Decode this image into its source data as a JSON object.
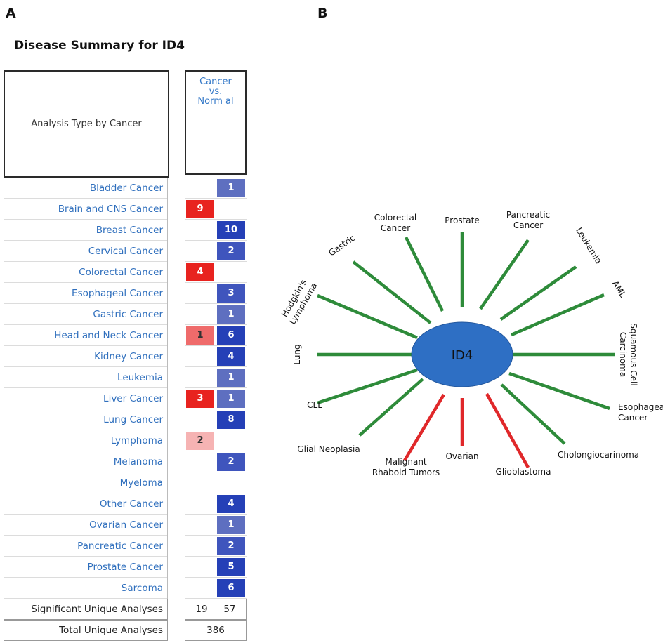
{
  "panels": {
    "a": "A",
    "b": "B"
  },
  "table": {
    "title": "Disease Summary for ID4",
    "type_header": "Analysis Type by Cancer",
    "value_header": [
      "Cancer",
      "vs.",
      "Norm al"
    ],
    "rows": [
      {
        "label": "Bladder Cancer",
        "up": "",
        "down": "1"
      },
      {
        "label": "Brain and CNS Cancer",
        "up": "9",
        "down": ""
      },
      {
        "label": "Breast Cancer",
        "up": "",
        "down": "10"
      },
      {
        "label": "Cervical Cancer",
        "up": "",
        "down": "2"
      },
      {
        "label": "Colorectal Cancer",
        "up": "4",
        "down": ""
      },
      {
        "label": "Esophageal Cancer",
        "up": "",
        "down": "3"
      },
      {
        "label": "Gastric Cancer",
        "up": "",
        "down": "1"
      },
      {
        "label": "Head and Neck Cancer",
        "up": "1",
        "down": "6"
      },
      {
        "label": "Kidney Cancer",
        "up": "",
        "down": "4"
      },
      {
        "label": "Leukemia",
        "up": "",
        "down": "1"
      },
      {
        "label": "Liver Cancer",
        "up": "3",
        "down": "1"
      },
      {
        "label": "Lung Cancer",
        "up": "",
        "down": "8"
      },
      {
        "label": "Lymphoma",
        "up": "2",
        "down": ""
      },
      {
        "label": "Melanoma",
        "up": "",
        "down": "2"
      },
      {
        "label": "Myeloma",
        "up": "",
        "down": ""
      },
      {
        "label": "Other Cancer",
        "up": "",
        "down": "4"
      },
      {
        "label": "Ovarian Cancer",
        "up": "",
        "down": "1"
      },
      {
        "label": "Pancreatic Cancer",
        "up": "",
        "down": "2"
      },
      {
        "label": "Prostate Cancer",
        "up": "",
        "down": "5"
      },
      {
        "label": "Sarcoma",
        "up": "",
        "down": "6"
      }
    ],
    "significant_label": "Significant Unique Analyses",
    "significant_up": "19",
    "significant_down": "57",
    "total_label": "Total Unique Analyses",
    "total_value": "386",
    "colors": {
      "up_strong": "#e8231f",
      "up_medium": "#ef6b6b",
      "up_light": "#f6b3b3",
      "down_strong": "#2540b7",
      "down_medium": "#3f55bd",
      "down_light": "#5e6fc0"
    }
  },
  "diagram": {
    "center_label": "ID4",
    "center_color": "#2e6fc4",
    "down_color": "#2e8b3a",
    "up_color": "#e0282a",
    "spokes": [
      {
        "label": "Prostate",
        "status": "down"
      },
      {
        "label": "Pancreatic Cancer",
        "status": "down"
      },
      {
        "label": "Leukemia",
        "status": "down"
      },
      {
        "label": "AML",
        "status": "down"
      },
      {
        "label": "Squamous Cell Carcinoma",
        "status": "down"
      },
      {
        "label": "Esophageal Cancer",
        "status": "down"
      },
      {
        "label": "Cholongiocarinoma",
        "status": "down"
      },
      {
        "label": "Glioblastoma",
        "status": "up"
      },
      {
        "label": "Ovarian",
        "status": "up"
      },
      {
        "label": "Malignant Rhaboid Tumors",
        "status": "up"
      },
      {
        "label": "Glial Neoplasia",
        "status": "down"
      },
      {
        "label": "CLL",
        "status": "down"
      },
      {
        "label": "Lung",
        "status": "down"
      },
      {
        "label": "Hodgkin's Lymphoma",
        "status": "down"
      },
      {
        "label": "Gastric",
        "status": "down"
      },
      {
        "label": "Colorectal Cancer",
        "status": "down"
      }
    ]
  }
}
